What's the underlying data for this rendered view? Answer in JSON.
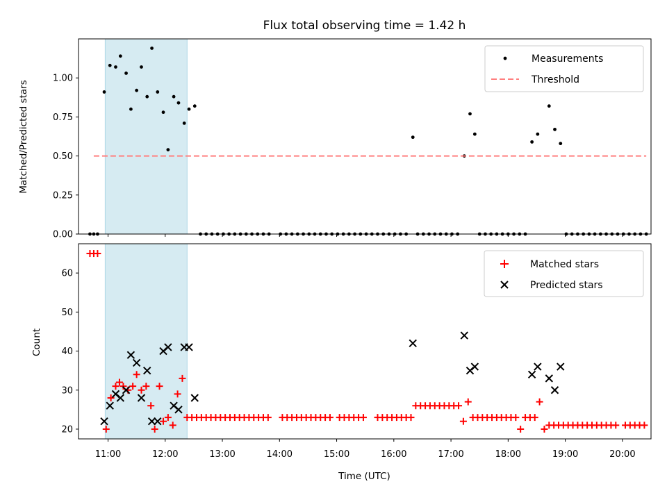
{
  "chart_data": [
    {
      "type": "scatter",
      "title": "Flux total observing time = 1.42 h",
      "xlabel": "",
      "ylabel": "Matched/Predicted stars",
      "xlim": [
        "10:29",
        "20:30"
      ],
      "ylim": [
        0,
        1.25
      ],
      "yticks": [
        "0.00",
        "0.25",
        "0.50",
        "0.75",
        "1.00"
      ],
      "grid": false,
      "legend_position": "top-right",
      "highlight_span": [
        "10:57",
        "12:23"
      ],
      "colors": {
        "measurements": "#000000",
        "threshold": "#ff7f7f",
        "span": "#add8e6"
      },
      "series": [
        {
          "name": "Measurements",
          "points": [
            [
              "10:41",
              0
            ],
            [
              "10:45",
              0
            ],
            [
              "10:49",
              0
            ],
            [
              "10:56",
              0.91
            ],
            [
              "11:02",
              1.08
            ],
            [
              "11:08",
              1.07
            ],
            [
              "11:13",
              1.14
            ],
            [
              "11:19",
              1.03
            ],
            [
              "11:24",
              0.8
            ],
            [
              "11:30",
              0.92
            ],
            [
              "11:35",
              1.07
            ],
            [
              "11:41",
              0.88
            ],
            [
              "11:46",
              1.19
            ],
            [
              "11:52",
              0.91
            ],
            [
              "11:58",
              0.78
            ],
            [
              "12:03",
              0.54
            ],
            [
              "12:09",
              0.88
            ],
            [
              "12:14",
              0.84
            ],
            [
              "12:20",
              0.71
            ],
            [
              "12:25",
              0.8
            ],
            [
              "12:31",
              0.82
            ],
            [
              "12:37",
              0
            ],
            [
              "12:43",
              0
            ],
            [
              "12:49",
              0
            ],
            [
              "12:55",
              0
            ],
            [
              "13:01",
              0
            ],
            [
              "13:07",
              0
            ],
            [
              "13:13",
              0
            ],
            [
              "13:19",
              0
            ],
            [
              "13:25",
              0
            ],
            [
              "13:31",
              0
            ],
            [
              "13:37",
              0
            ],
            [
              "13:43",
              0
            ],
            [
              "13:49",
              0
            ],
            [
              "14:01",
              0
            ],
            [
              "14:07",
              0
            ],
            [
              "14:13",
              0
            ],
            [
              "14:19",
              0
            ],
            [
              "14:25",
              0
            ],
            [
              "14:31",
              0
            ],
            [
              "14:37",
              0
            ],
            [
              "14:43",
              0
            ],
            [
              "14:49",
              0
            ],
            [
              "14:55",
              0
            ],
            [
              "15:01",
              0
            ],
            [
              "15:07",
              0
            ],
            [
              "15:13",
              0
            ],
            [
              "15:19",
              0
            ],
            [
              "15:25",
              0
            ],
            [
              "15:31",
              0
            ],
            [
              "15:37",
              0
            ],
            [
              "15:43",
              0
            ],
            [
              "15:49",
              0
            ],
            [
              "15:55",
              0
            ],
            [
              "16:01",
              0
            ],
            [
              "16:07",
              0
            ],
            [
              "16:13",
              0
            ],
            [
              "16:20",
              0.62
            ],
            [
              "16:25",
              0
            ],
            [
              "16:31",
              0
            ],
            [
              "16:37",
              0
            ],
            [
              "16:43",
              0
            ],
            [
              "16:49",
              0
            ],
            [
              "16:55",
              0
            ],
            [
              "17:01",
              0
            ],
            [
              "17:07",
              0
            ],
            [
              "17:14",
              0.5
            ],
            [
              "17:20",
              0.77
            ],
            [
              "17:25",
              0.64
            ],
            [
              "17:30",
              0
            ],
            [
              "17:36",
              0
            ],
            [
              "17:42",
              0
            ],
            [
              "17:48",
              0
            ],
            [
              "17:54",
              0
            ],
            [
              "18:00",
              0
            ],
            [
              "18:06",
              0
            ],
            [
              "18:12",
              0
            ],
            [
              "18:18",
              0
            ],
            [
              "18:25",
              0.59
            ],
            [
              "18:31",
              0.64
            ],
            [
              "18:43",
              0.82
            ],
            [
              "18:49",
              0.67
            ],
            [
              "18:55",
              0.58
            ],
            [
              "19:01",
              0
            ],
            [
              "19:07",
              0
            ],
            [
              "19:13",
              0
            ],
            [
              "19:19",
              0
            ],
            [
              "19:25",
              0
            ],
            [
              "19:31",
              0
            ],
            [
              "19:37",
              0
            ],
            [
              "19:43",
              0
            ],
            [
              "19:49",
              0
            ],
            [
              "19:55",
              0
            ],
            [
              "20:01",
              0
            ],
            [
              "20:07",
              0
            ],
            [
              "20:13",
              0
            ],
            [
              "20:19",
              0
            ],
            [
              "20:25",
              0
            ]
          ]
        },
        {
          "name": "Threshold",
          "style": "dashed",
          "points": [
            [
              "10:45",
              0.5
            ],
            [
              "20:25",
              0.5
            ]
          ]
        }
      ]
    },
    {
      "type": "scatter",
      "title": "",
      "xlabel": "Time (UTC)",
      "ylabel": "Count",
      "xlim": [
        "10:29",
        "20:30"
      ],
      "ylim": [
        17.5,
        67.5
      ],
      "xticks": [
        "11:00",
        "12:00",
        "13:00",
        "14:00",
        "15:00",
        "16:00",
        "17:00",
        "18:00",
        "19:00",
        "20:00"
      ],
      "yticks": [
        "20",
        "30",
        "40",
        "50",
        "60"
      ],
      "grid": false,
      "legend_position": "top-right",
      "highlight_span": [
        "10:57",
        "12:23"
      ],
      "colors": {
        "matched": "#ff0000",
        "predicted": "#000000",
        "span": "#add8e6"
      },
      "series": [
        {
          "name": "Matched stars",
          "marker": "+",
          "points": [
            [
              "10:41",
              65
            ],
            [
              "10:45",
              65
            ],
            [
              "10:49",
              65
            ],
            [
              "10:58",
              20
            ],
            [
              "11:03",
              28
            ],
            [
              "11:08",
              31
            ],
            [
              "11:12",
              32
            ],
            [
              "11:16",
              31
            ],
            [
              "11:21",
              30
            ],
            [
              "11:26",
              31
            ],
            [
              "11:30",
              34
            ],
            [
              "11:35",
              30
            ],
            [
              "11:40",
              31
            ],
            [
              "11:45",
              26
            ],
            [
              "11:49",
              20
            ],
            [
              "11:54",
              31
            ],
            [
              "11:58",
              22
            ],
            [
              "12:03",
              23
            ],
            [
              "12:08",
              21
            ],
            [
              "12:13",
              29
            ],
            [
              "12:18",
              33
            ],
            [
              "12:23",
              23
            ],
            [
              "12:28",
              23
            ],
            [
              "12:33",
              23
            ],
            [
              "12:38",
              23
            ],
            [
              "12:43",
              23
            ],
            [
              "12:48",
              23
            ],
            [
              "12:53",
              23
            ],
            [
              "12:58",
              23
            ],
            [
              "13:03",
              23
            ],
            [
              "13:08",
              23
            ],
            [
              "13:13",
              23
            ],
            [
              "13:18",
              23
            ],
            [
              "13:23",
              23
            ],
            [
              "13:28",
              23
            ],
            [
              "13:33",
              23
            ],
            [
              "13:38",
              23
            ],
            [
              "13:43",
              23
            ],
            [
              "13:48",
              23
            ],
            [
              "14:03",
              23
            ],
            [
              "14:08",
              23
            ],
            [
              "14:13",
              23
            ],
            [
              "14:18",
              23
            ],
            [
              "14:23",
              23
            ],
            [
              "14:28",
              23
            ],
            [
              "14:33",
              23
            ],
            [
              "14:38",
              23
            ],
            [
              "14:43",
              23
            ],
            [
              "14:48",
              23
            ],
            [
              "14:53",
              23
            ],
            [
              "15:03",
              23
            ],
            [
              "15:08",
              23
            ],
            [
              "15:13",
              23
            ],
            [
              "15:18",
              23
            ],
            [
              "15:23",
              23
            ],
            [
              "15:28",
              23
            ],
            [
              "15:43",
              23
            ],
            [
              "15:48",
              23
            ],
            [
              "15:53",
              23
            ],
            [
              "15:58",
              23
            ],
            [
              "16:03",
              23
            ],
            [
              "16:08",
              23
            ],
            [
              "16:13",
              23
            ],
            [
              "16:18",
              23
            ],
            [
              "16:23",
              26
            ],
            [
              "16:28",
              26
            ],
            [
              "16:33",
              26
            ],
            [
              "16:38",
              26
            ],
            [
              "16:43",
              26
            ],
            [
              "16:48",
              26
            ],
            [
              "16:53",
              26
            ],
            [
              "16:58",
              26
            ],
            [
              "17:03",
              26
            ],
            [
              "17:08",
              26
            ],
            [
              "17:13",
              22
            ],
            [
              "17:18",
              27
            ],
            [
              "17:23",
              23
            ],
            [
              "17:28",
              23
            ],
            [
              "17:33",
              23
            ],
            [
              "17:38",
              23
            ],
            [
              "17:43",
              23
            ],
            [
              "17:48",
              23
            ],
            [
              "17:53",
              23
            ],
            [
              "17:58",
              23
            ],
            [
              "18:03",
              23
            ],
            [
              "18:08",
              23
            ],
            [
              "18:13",
              20
            ],
            [
              "18:18",
              23
            ],
            [
              "18:23",
              23
            ],
            [
              "18:28",
              23
            ],
            [
              "18:33",
              27
            ],
            [
              "18:38",
              20
            ],
            [
              "18:43",
              21
            ],
            [
              "18:48",
              21
            ],
            [
              "18:53",
              21
            ],
            [
              "18:58",
              21
            ],
            [
              "19:03",
              21
            ],
            [
              "19:08",
              21
            ],
            [
              "19:13",
              21
            ],
            [
              "19:18",
              21
            ],
            [
              "19:23",
              21
            ],
            [
              "19:28",
              21
            ],
            [
              "19:33",
              21
            ],
            [
              "19:38",
              21
            ],
            [
              "19:43",
              21
            ],
            [
              "19:48",
              21
            ],
            [
              "19:53",
              21
            ],
            [
              "20:03",
              21
            ],
            [
              "20:08",
              21
            ],
            [
              "20:13",
              21
            ],
            [
              "20:18",
              21
            ],
            [
              "20:23",
              21
            ]
          ]
        },
        {
          "name": "Predicted stars",
          "marker": "x",
          "points": [
            [
              "10:56",
              22
            ],
            [
              "11:02",
              26
            ],
            [
              "11:08",
              29
            ],
            [
              "11:13",
              28
            ],
            [
              "11:19",
              30
            ],
            [
              "11:24",
              39
            ],
            [
              "11:30",
              37
            ],
            [
              "11:35",
              28
            ],
            [
              "11:41",
              35
            ],
            [
              "11:46",
              22
            ],
            [
              "11:52",
              22
            ],
            [
              "11:58",
              40
            ],
            [
              "12:03",
              41
            ],
            [
              "12:09",
              26
            ],
            [
              "12:14",
              25
            ],
            [
              "12:20",
              41
            ],
            [
              "12:25",
              41
            ],
            [
              "12:31",
              28
            ],
            [
              "16:20",
              42
            ],
            [
              "17:14",
              44
            ],
            [
              "17:20",
              35
            ],
            [
              "17:25",
              36
            ],
            [
              "18:25",
              34
            ],
            [
              "18:31",
              36
            ],
            [
              "18:43",
              33
            ],
            [
              "18:49",
              30
            ],
            [
              "18:55",
              36
            ]
          ]
        }
      ]
    }
  ]
}
